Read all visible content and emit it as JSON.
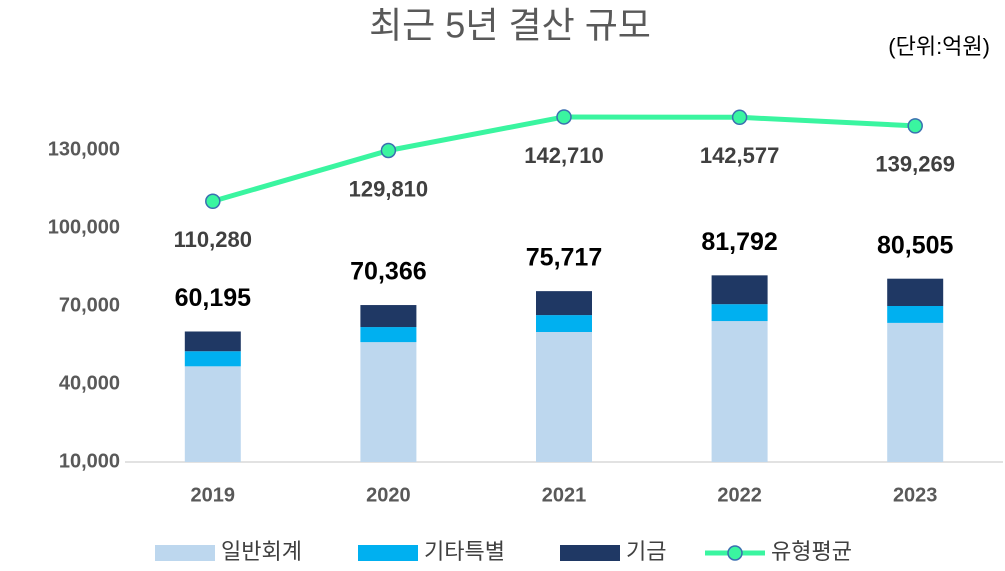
{
  "chart_data": {
    "type": "bar_line",
    "title": "최근 5년 결산 규모",
    "unit": "(단위:억원)",
    "categories": [
      "2019",
      "2020",
      "2021",
      "2022",
      "2023"
    ],
    "series": [
      {
        "name": "일반회계",
        "color": "#bdd7ee",
        "values": [
          46800,
          56100,
          60000,
          64200,
          63500
        ]
      },
      {
        "name": "기타특별",
        "color": "#00b0f0",
        "values": [
          5800,
          5800,
          6500,
          6500,
          6500
        ]
      },
      {
        "name": "기금",
        "color": "#1f3864",
        "values": [
          7595,
          8466,
          9217,
          11092,
          10505
        ]
      },
      {
        "name": "유형평균",
        "type": "line",
        "color": "#3af5a0",
        "marker_edge": "#3a6fb0",
        "values": [
          110280,
          129810,
          142710,
          142577,
          139269
        ],
        "value_labels": [
          "110,280",
          "129,810",
          "142,710",
          "142,577",
          "139,269"
        ]
      }
    ],
    "totals": {
      "values": [
        60195,
        70366,
        75717,
        81792,
        80505
      ],
      "value_labels": [
        "60,195",
        "70,366",
        "75,717",
        "81,792",
        "80,505"
      ]
    },
    "ylim": [
      10000,
      145000
    ],
    "yticks": [
      {
        "value": 10000,
        "label": "10,000"
      },
      {
        "value": 40000,
        "label": "40,000"
      },
      {
        "value": 70000,
        "label": "70,000"
      },
      {
        "value": 100000,
        "label": "100,000"
      },
      {
        "value": 130000,
        "label": "130,000"
      }
    ],
    "legend": "bottom"
  }
}
